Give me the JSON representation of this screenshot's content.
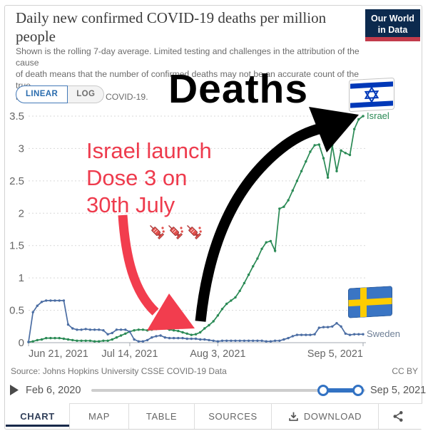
{
  "header": {
    "title": "Daily new confirmed COVID-19 deaths per million people",
    "subtitle_line1": "Shown is the rolling 7-day average. Limited testing and challenges in the attribution of the cause",
    "subtitle_line2": "of death means that the number of confirmed deaths may not be an accurate count of the true",
    "subtitle_line3": "number of deaths from COVID-19.",
    "logo_line1": "Our World",
    "logo_line2": "in Data",
    "logo_bg_color": "#0c2a4e",
    "logo_stripe_color": "#c23b4b"
  },
  "controls": {
    "linear_label": "LINEAR",
    "log_label": "LOG",
    "active_scale": "LINEAR",
    "accent_color": "#2a6cae"
  },
  "annotations": {
    "deaths_text": "Deaths",
    "note_line1": "Israel launch",
    "note_line2": "Dose 3 on",
    "note_line3": "30th July",
    "note_color": "#ee3b4d",
    "syringe_icon_count": 3,
    "icons": [
      "israel-flag",
      "sweden-flag",
      "syringe",
      "red-arrow",
      "black-arrow"
    ]
  },
  "chart_data": {
    "type": "line",
    "title": "Daily new confirmed COVID-19 deaths per million people",
    "xlabel": "",
    "ylabel": "",
    "ylim": [
      0,
      3.5
    ],
    "y_ticks": [
      0,
      0.5,
      1,
      1.5,
      2,
      2.5,
      3,
      3.5
    ],
    "x_ticks": [
      "Jun 21, 2021",
      "Jul 14, 2021",
      "Aug 3, 2021",
      "Sep 5, 2021"
    ],
    "tick_day_offsets": [
      0,
      23,
      43,
      76
    ],
    "x_range_days": 76,
    "grid": "dashed",
    "legend_position": "end-of-line-labels",
    "series": [
      {
        "name": "Israel",
        "color": "#2a8a55",
        "label_color": "#2a8a55",
        "values": [
          0.01,
          0.02,
          0.04,
          0.05,
          0.07,
          0.07,
          0.07,
          0.07,
          0.06,
          0.05,
          0.04,
          0.03,
          0.03,
          0.03,
          0.03,
          0.02,
          0.02,
          0.03,
          0.03,
          0.05,
          0.08,
          0.11,
          0.14,
          0.17,
          0.19,
          0.2,
          0.2,
          0.19,
          0.2,
          0.21,
          0.23,
          0.22,
          0.2,
          0.19,
          0.18,
          0.16,
          0.14,
          0.12,
          0.13,
          0.16,
          0.22,
          0.27,
          0.33,
          0.42,
          0.52,
          0.6,
          0.65,
          0.7,
          0.8,
          0.92,
          1.05,
          1.18,
          1.3,
          1.45,
          1.55,
          1.57,
          1.42,
          2.07,
          2.1,
          2.2,
          2.35,
          2.5,
          2.65,
          2.8,
          2.95,
          3.05,
          3.06,
          2.85,
          2.55,
          3.05,
          2.65,
          2.97,
          2.93,
          2.9,
          3.3,
          3.45,
          3.5
        ]
      },
      {
        "name": "Sweden",
        "color": "#4b6da3",
        "label_color": "#6e7f96",
        "values": [
          0.01,
          0.47,
          0.57,
          0.63,
          0.65,
          0.65,
          0.65,
          0.65,
          0.65,
          0.28,
          0.22,
          0.2,
          0.2,
          0.21,
          0.2,
          0.2,
          0.2,
          0.19,
          0.13,
          0.15,
          0.2,
          0.2,
          0.2,
          0.17,
          0.05,
          0.02,
          0.02,
          0.04,
          0.08,
          0.1,
          0.11,
          0.08,
          0.07,
          0.07,
          0.07,
          0.07,
          0.06,
          0.06,
          0.06,
          0.05,
          0.05,
          0.04,
          0.03,
          0.02,
          0.03,
          0.03,
          0.03,
          0.03,
          0.03,
          0.03,
          0.03,
          0.03,
          0.03,
          0.03,
          0.02,
          0.02,
          0.03,
          0.03,
          0.05,
          0.07,
          0.1,
          0.12,
          0.12,
          0.12,
          0.12,
          0.13,
          0.23,
          0.24,
          0.24,
          0.25,
          0.3,
          0.25,
          0.14,
          0.12,
          0.13,
          0.13,
          0.13
        ]
      }
    ]
  },
  "footer": {
    "source": "Source: Johns Hopkins University CSSE COVID-19 Data",
    "license": "CC BY",
    "timeline": {
      "start": "Feb 6, 2020",
      "end": "Sep 5, 2021",
      "play_icon": "play-triangle",
      "slider_color": "#3272c3"
    },
    "tabs": [
      {
        "label": "CHART",
        "active": true
      },
      {
        "label": "MAP",
        "active": false
      },
      {
        "label": "TABLE",
        "active": false
      },
      {
        "label": "SOURCES",
        "active": false
      },
      {
        "label": "DOWNLOAD",
        "active": false,
        "icon": "download-icon"
      }
    ],
    "share_icon": "share-nodes"
  }
}
